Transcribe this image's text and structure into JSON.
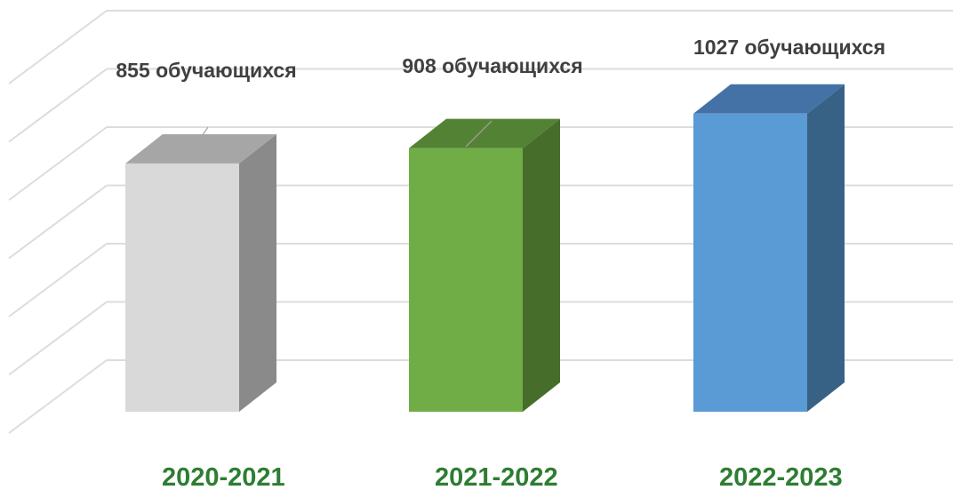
{
  "chart_data": {
    "type": "bar",
    "categories": [
      "2020-2021",
      "2021-2022",
      "2022-2023"
    ],
    "values": [
      855,
      908,
      1027
    ],
    "data_labels": [
      "855 обучающихся",
      "908  обучающихся",
      "1027 обучающихся"
    ],
    "title": "",
    "xlabel": "",
    "ylabel": "",
    "ylim": [
      0,
      1400
    ],
    "grid": true,
    "legend": "none",
    "colors": [
      {
        "front": "#d9d9d9",
        "top": "#a6a6a6",
        "side": "#8a8a8a"
      },
      {
        "front": "#70ad47",
        "top": "#548235",
        "side": "#476d2b"
      },
      {
        "front": "#5b9bd5",
        "top": "#4472a6",
        "side": "#376286"
      }
    ],
    "category_label_color": "#2e7d32",
    "data_label_color": "#404040"
  }
}
